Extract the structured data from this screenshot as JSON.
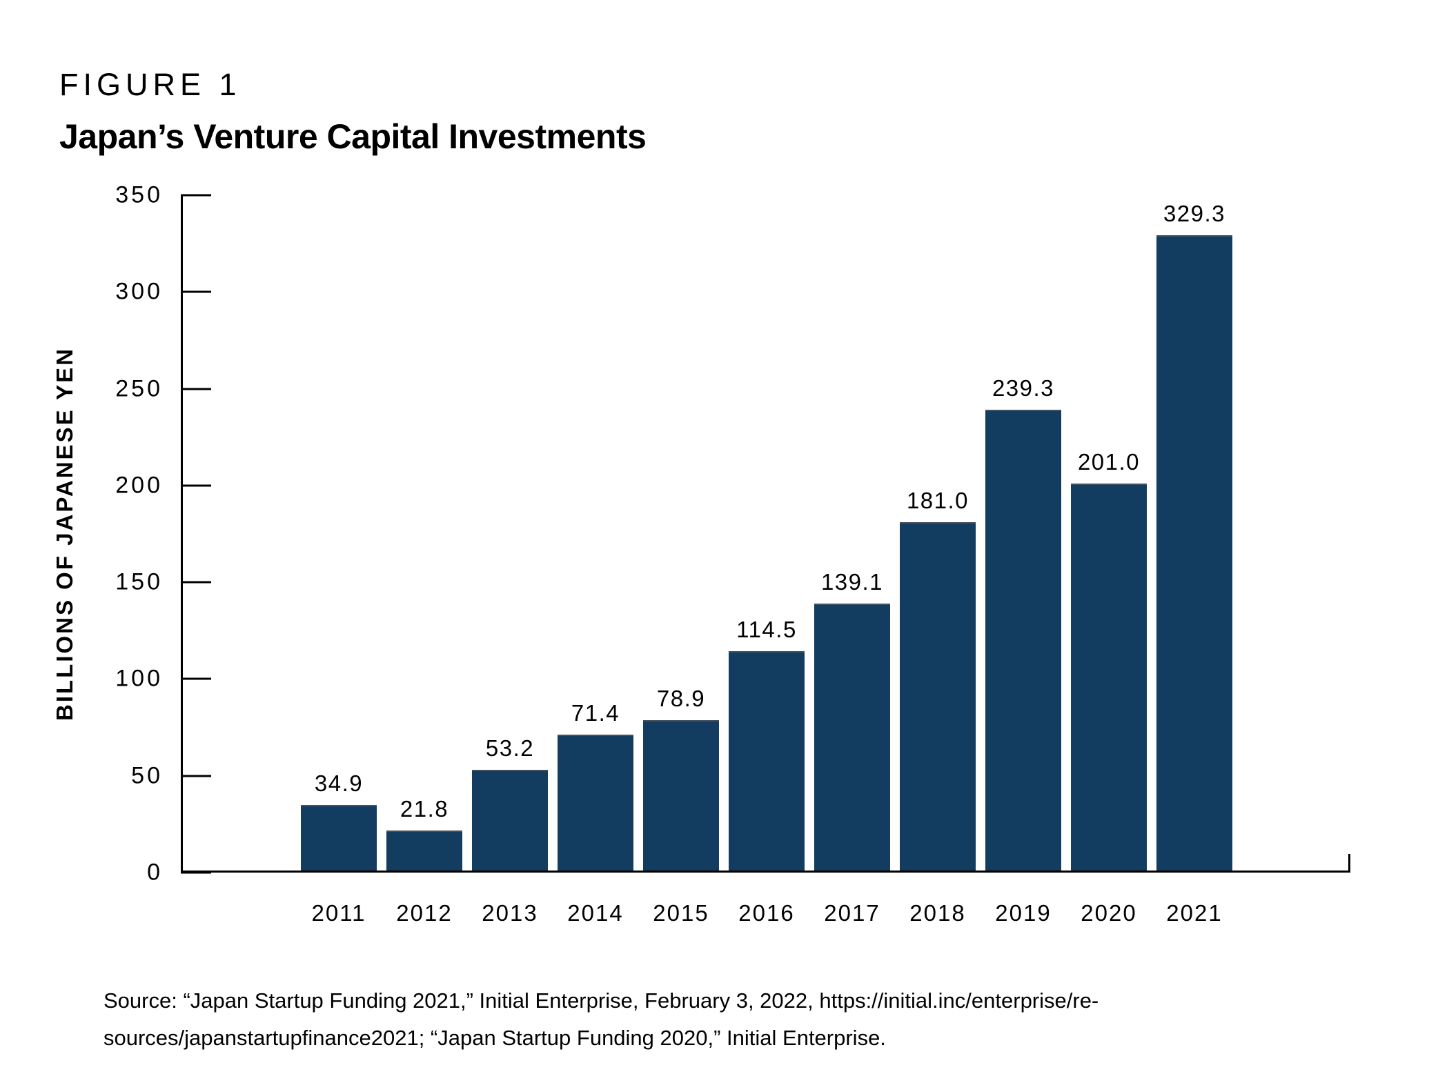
{
  "header": {
    "figure_label": "FIGURE 1",
    "title": "Japan’s Venture Capital Investments"
  },
  "chart_data": {
    "type": "bar",
    "title": "Japan’s Venture Capital Investments",
    "categories": [
      "2011",
      "2012",
      "2013",
      "2014",
      "2015",
      "2016",
      "2017",
      "2018",
      "2019",
      "2020",
      "2021"
    ],
    "values": [
      34.9,
      21.8,
      53.2,
      71.4,
      78.9,
      114.5,
      139.1,
      181.0,
      239.3,
      201.0,
      329.3
    ],
    "value_labels": [
      "34.9",
      "21.8",
      "53.2",
      "71.4",
      "78.9",
      "114.5",
      "139.1",
      "181.0",
      "239.3",
      "201.0",
      "329.3"
    ],
    "xlabel": "",
    "ylabel": "BILLIONS OF JAPANESE YEN",
    "ylim": [
      0,
      350
    ],
    "yticks": [
      0,
      50,
      100,
      150,
      200,
      250,
      300,
      350
    ],
    "bar_color": "#133D60",
    "grid": "off",
    "legend": "none"
  },
  "source": {
    "line1": "Source: “Japan Startup Funding 2021,” Initial Enterprise, February 3, 2022, https://initial.inc/enterprise/re-",
    "line2": "sources/japanstartupfinance2021; “Japan Startup Funding 2020,” Initial Enterprise."
  }
}
